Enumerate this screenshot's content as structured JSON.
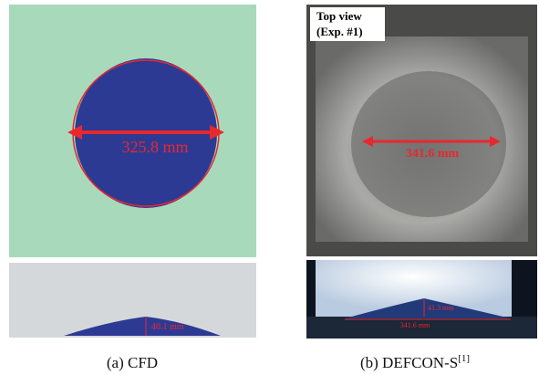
{
  "panels": [
    {
      "caption": "(a)  CFD",
      "top_label": "325.8 mm",
      "side_label": "40.1 mm"
    },
    {
      "caption_main": "(b)  DEFCON-S",
      "caption_ref": "[1]",
      "view_title": "Top view",
      "view_subtitle": "(Exp. #1)",
      "top_label": "341.6 mm",
      "side_height_label": "41.3 mm",
      "side_width_label": "341.6 mm"
    }
  ]
}
